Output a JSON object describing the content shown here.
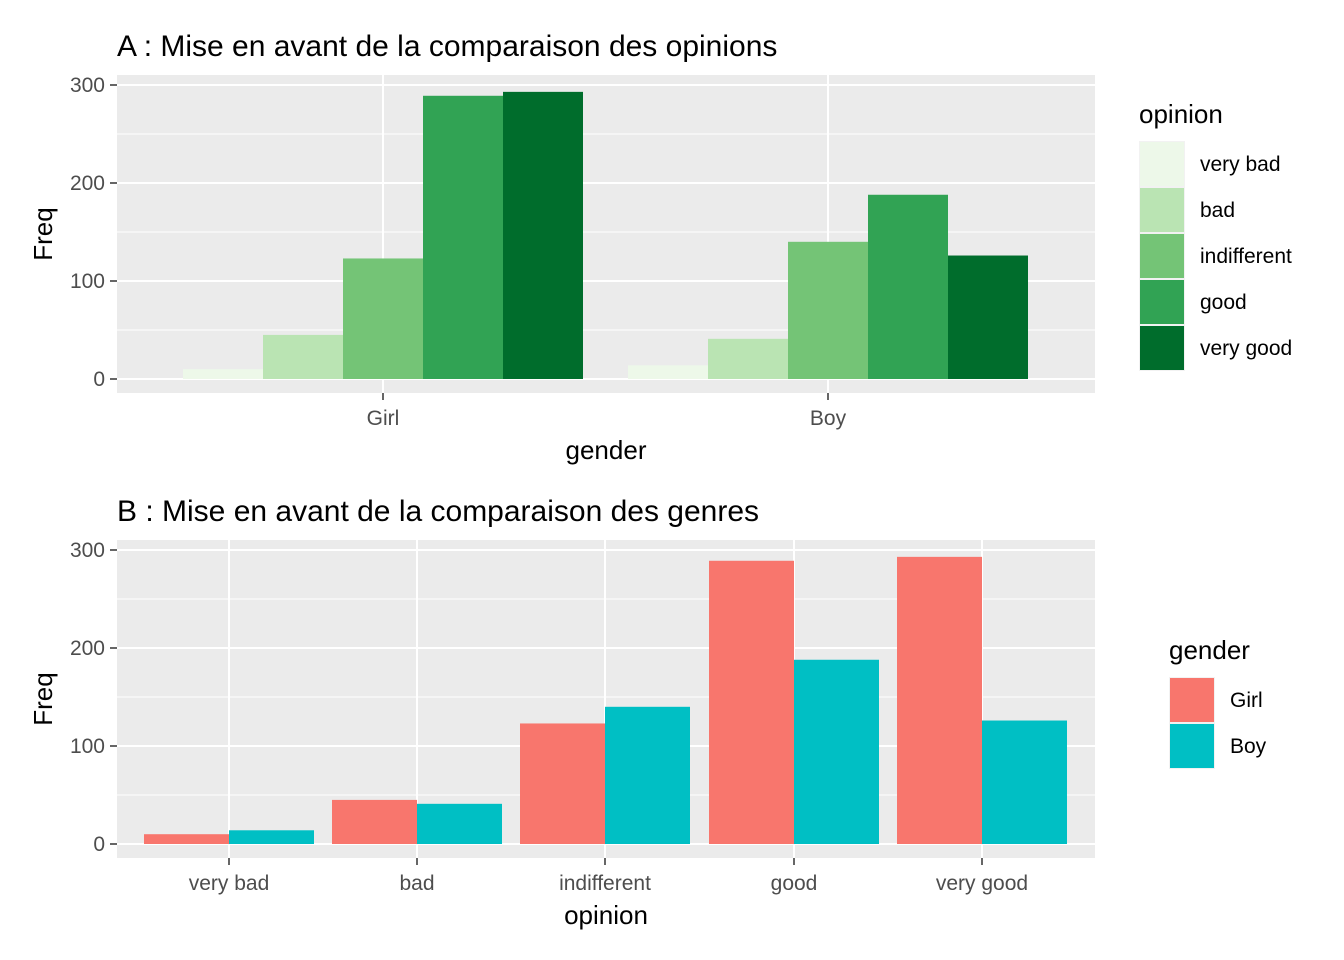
{
  "chart_data": [
    {
      "type": "bar",
      "title": "A : Mise en avant de la comparaison des opinions",
      "xlabel": "gender",
      "ylabel": "Freq",
      "categories": [
        "Girl",
        "Boy"
      ],
      "ylim": [
        0,
        300
      ],
      "yticks": [
        0,
        100,
        200,
        300
      ],
      "grid": true,
      "legend": {
        "title": "opinion",
        "position": "right"
      },
      "series": [
        {
          "name": "very bad",
          "color": "#edf8e9",
          "values": [
            10,
            14
          ]
        },
        {
          "name": "bad",
          "color": "#bae4b3",
          "values": [
            45,
            41
          ]
        },
        {
          "name": "indifferent",
          "color": "#74c476",
          "values": [
            123,
            140
          ]
        },
        {
          "name": "good",
          "color": "#31a354",
          "values": [
            289,
            188
          ]
        },
        {
          "name": "very good",
          "color": "#006d2c",
          "values": [
            293,
            126
          ]
        }
      ]
    },
    {
      "type": "bar",
      "title": "B : Mise en avant de la comparaison des genres",
      "xlabel": "opinion",
      "ylabel": "Freq",
      "categories": [
        "very bad",
        "bad",
        "indifferent",
        "good",
        "very good"
      ],
      "ylim": [
        0,
        300
      ],
      "yticks": [
        0,
        100,
        200,
        300
      ],
      "grid": true,
      "legend": {
        "title": "gender",
        "position": "right"
      },
      "series": [
        {
          "name": "Girl",
          "color": "#f8766d",
          "values": [
            10,
            45,
            123,
            289,
            293
          ]
        },
        {
          "name": "Boy",
          "color": "#00bfc4",
          "values": [
            14,
            41,
            140,
            188,
            126
          ]
        }
      ]
    }
  ]
}
